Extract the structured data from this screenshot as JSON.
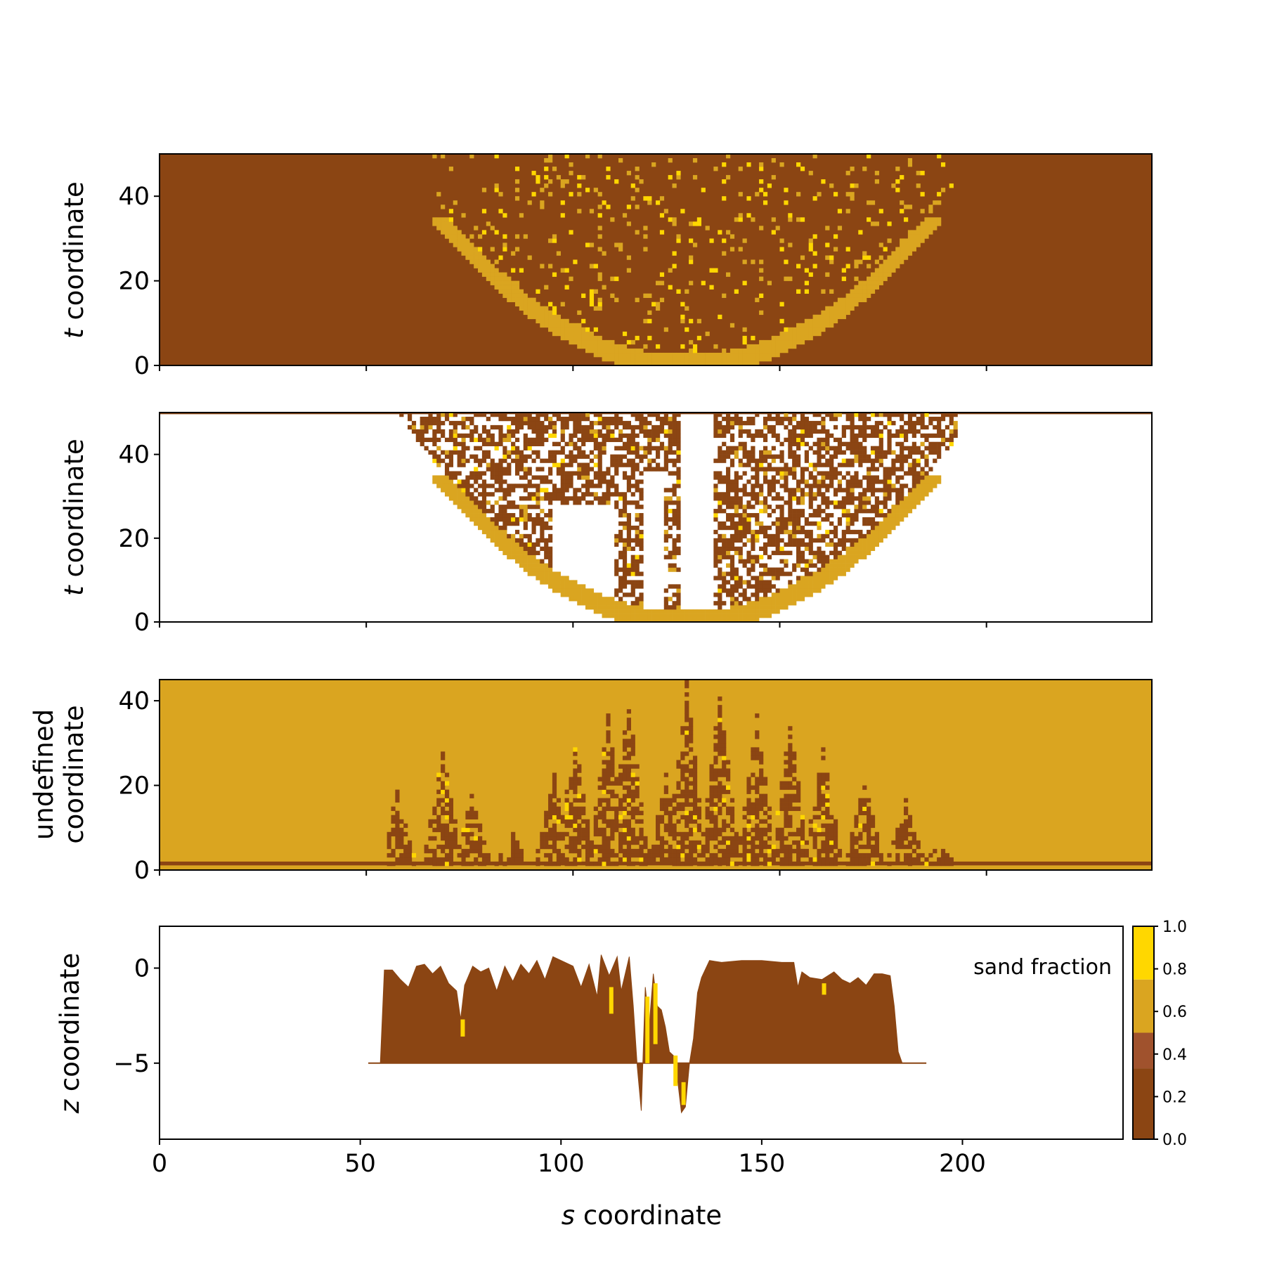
{
  "figure": {
    "x_axis_label_var": "s",
    "x_axis_label_rest": " coordinate"
  },
  "colors": {
    "dark_brown": "#8B4513",
    "sienna": "#A0522D",
    "goldenrod": "#DAA520",
    "gold": "#FFD700",
    "white": "#FFFFFF"
  },
  "chart_data": [
    {
      "type": "heatmap",
      "panel": "top",
      "ylabel_var": "t",
      "ylabel_rest": " coordinate",
      "xlim": [
        0,
        240
      ],
      "ylim": [
        0,
        50
      ],
      "yticks": [
        "0",
        "20",
        "40"
      ],
      "ytick_values": [
        0,
        20,
        40
      ],
      "xtick_values": [
        0,
        50,
        100,
        150,
        200
      ],
      "background": "dark_brown",
      "description_values": "sand-fraction classes on the (s,t) plane; goldenrod crescent and scattered gold/goldenrod cells between s≈52 and s≈192"
    },
    {
      "type": "heatmap",
      "panel": "second",
      "ylabel_var": "t",
      "ylabel_rest": " coordinate",
      "xlim": [
        0,
        240
      ],
      "ylim": [
        0,
        50
      ],
      "yticks": [
        "0",
        "20",
        "40"
      ],
      "ytick_values": [
        0,
        20,
        40
      ],
      "xtick_values": [
        0,
        50,
        100,
        150,
        200
      ],
      "background": "white"
    },
    {
      "type": "heatmap",
      "panel": "third",
      "ylabel_line1": "undefined",
      "ylabel_line2": "coordinate",
      "xlim": [
        0,
        240
      ],
      "ylim": [
        0,
        45
      ],
      "yticks": [
        "0",
        "20",
        "40"
      ],
      "ytick_values": [
        0,
        20,
        40
      ],
      "xtick_values": [
        0,
        50,
        100,
        150,
        200
      ],
      "background": "goldenrod"
    },
    {
      "type": "area",
      "panel": "bottom",
      "ylabel_var": "z",
      "ylabel_rest": " coordinate",
      "xlim": [
        0,
        240
      ],
      "ylim": [
        -9,
        2.2
      ],
      "yticks": [
        "−5",
        "0"
      ],
      "ytick_values": [
        -5,
        0
      ],
      "xticks": [
        "0",
        "50",
        "100",
        "150",
        "200"
      ],
      "xtick_values": [
        0,
        50,
        100,
        150,
        200
      ],
      "legend_label": "sand fraction",
      "legend_position": "top-right",
      "colorbar": {
        "ticks": [
          "0.0",
          "0.2",
          "0.4",
          "0.6",
          "0.8",
          "1.0"
        ],
        "tick_values": [
          0.0,
          0.2,
          0.4,
          0.6,
          0.8,
          1.0
        ],
        "bins": [
          {
            "from": 0.0,
            "to": 0.333,
            "color": "dark_brown"
          },
          {
            "from": 0.333,
            "to": 0.5,
            "color": "sienna"
          },
          {
            "from": 0.5,
            "to": 0.75,
            "color": "goldenrod"
          },
          {
            "from": 0.75,
            "to": 1.0,
            "color": "gold"
          }
        ]
      },
      "profile_top": [
        [
          52,
          -5
        ],
        [
          55,
          -5
        ],
        [
          56,
          -0.1
        ],
        [
          58,
          -0.1
        ],
        [
          60,
          -0.6
        ],
        [
          62,
          -1.0
        ],
        [
          64,
          0.1
        ],
        [
          66,
          0.2
        ],
        [
          68,
          -0.3
        ],
        [
          70,
          0.1
        ],
        [
          72,
          -0.8
        ],
        [
          74,
          -1.2
        ],
        [
          75,
          -2.7
        ],
        [
          76,
          -0.9
        ],
        [
          78,
          0.1
        ],
        [
          80,
          -0.2
        ],
        [
          82,
          0.0
        ],
        [
          84,
          -1.2
        ],
        [
          86,
          0.1
        ],
        [
          88,
          -0.7
        ],
        [
          90,
          0.2
        ],
        [
          92,
          -0.3
        ],
        [
          94,
          0.4
        ],
        [
          96,
          -0.6
        ],
        [
          98,
          0.6
        ],
        [
          100,
          0.4
        ],
        [
          103,
          0.1
        ],
        [
          105,
          -1.0
        ],
        [
          107,
          0.2
        ],
        [
          109,
          -1.5
        ],
        [
          110,
          0.7
        ],
        [
          112,
          -0.4
        ],
        [
          114,
          0.6
        ],
        [
          115,
          -1.2
        ],
        [
          117,
          0.6
        ],
        [
          118,
          -2.0
        ],
        [
          119,
          -5.2
        ],
        [
          120,
          -7.5
        ],
        [
          121,
          -1.0
        ],
        [
          122,
          -3.0
        ],
        [
          123,
          -0.3
        ],
        [
          124,
          -2.0
        ],
        [
          125,
          -2.2
        ],
        [
          126,
          -3.1
        ],
        [
          127,
          -4.4
        ],
        [
          128,
          -4.6
        ],
        [
          129,
          -5.8
        ],
        [
          130,
          -7.6
        ],
        [
          131,
          -7.3
        ],
        [
          132,
          -5.0
        ],
        [
          133,
          -3.7
        ],
        [
          134,
          -1.3
        ],
        [
          135,
          -0.5
        ],
        [
          137,
          0.4
        ],
        [
          140,
          0.3
        ],
        [
          145,
          0.4
        ],
        [
          150,
          0.4
        ],
        [
          155,
          0.3
        ],
        [
          158,
          0.3
        ],
        [
          159,
          -1.0
        ],
        [
          160,
          -0.2
        ],
        [
          162,
          -0.5
        ],
        [
          165,
          -0.6
        ],
        [
          168,
          -0.2
        ],
        [
          170,
          -0.6
        ],
        [
          172,
          -0.8
        ],
        [
          174,
          -0.5
        ],
        [
          176,
          -0.9
        ],
        [
          178,
          -0.3
        ],
        [
          180,
          -0.3
        ],
        [
          182,
          -0.4
        ],
        [
          183,
          -2.0
        ],
        [
          184,
          -4.4
        ],
        [
          185,
          -5.0
        ],
        [
          191,
          -5.0
        ]
      ],
      "profile_base": -5
    }
  ]
}
